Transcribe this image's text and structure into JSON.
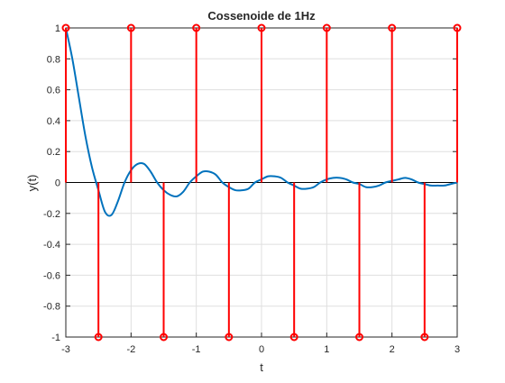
{
  "chart_data": {
    "type": "line",
    "title": "Cossenoide de 1Hz",
    "xlabel": "t",
    "ylabel": "y(t)",
    "xlim": [
      -3,
      3
    ],
    "ylim": [
      -1,
      1
    ],
    "grid": true,
    "x_ticks": [
      -3,
      -2,
      -1,
      0,
      1,
      2,
      3
    ],
    "y_ticks": [
      -1,
      -0.8,
      -0.6,
      -0.4,
      -0.2,
      0,
      0.2,
      0.4,
      0.6,
      0.8,
      1
    ],
    "x_tick_labels": [
      "-3",
      "-2",
      "-1",
      "0",
      "1",
      "2",
      "3"
    ],
    "y_tick_labels": [
      "-1",
      "-0.8",
      "-0.6",
      "-0.4",
      "-0.2",
      "0",
      "0.2",
      "0.4",
      "0.6",
      "0.8",
      "1"
    ],
    "series": [
      {
        "kind": "line",
        "color": "#0072BD",
        "x": [
          -3.0,
          -2.9,
          -2.8,
          -2.7,
          -2.6,
          -2.5,
          -2.4,
          -2.3,
          -2.2,
          -2.1,
          -2.0,
          -1.9,
          -1.8,
          -1.7,
          -1.6,
          -1.5,
          -1.4,
          -1.3,
          -1.2,
          -1.1,
          -1.0,
          -0.9,
          -0.8,
          -0.7,
          -0.6,
          -0.5,
          -0.4,
          -0.3,
          -0.2,
          -0.1,
          0.0,
          0.1,
          0.2,
          0.3,
          0.4,
          0.5,
          0.6,
          0.7,
          0.8,
          0.9,
          1.0,
          1.1,
          1.2,
          1.3,
          1.4,
          1.5,
          1.6,
          1.7,
          1.8,
          1.9,
          2.0,
          2.1,
          2.2,
          2.3,
          2.4,
          2.5,
          2.6,
          2.7,
          2.8,
          2.9,
          3.0
        ],
        "y": [
          1.0,
          0.8,
          0.55,
          0.3,
          0.1,
          -0.05,
          -0.19,
          -0.21,
          -0.12,
          0.0,
          0.08,
          0.12,
          0.12,
          0.07,
          0.0,
          -0.05,
          -0.08,
          -0.09,
          -0.06,
          0.0,
          0.04,
          0.07,
          0.07,
          0.05,
          0.0,
          -0.03,
          -0.05,
          -0.05,
          -0.04,
          0.0,
          0.02,
          0.04,
          0.04,
          0.03,
          0.0,
          -0.02,
          -0.04,
          -0.04,
          -0.03,
          0.0,
          0.02,
          0.03,
          0.03,
          0.02,
          0.0,
          -0.01,
          -0.03,
          -0.03,
          -0.02,
          0.0,
          0.01,
          0.02,
          0.03,
          0.02,
          0.0,
          -0.01,
          -0.02,
          -0.02,
          -0.02,
          -0.01,
          0.0
        ]
      },
      {
        "kind": "stem",
        "color": "#FF0000",
        "x": [
          -3,
          -2.5,
          -2,
          -1.5,
          -1,
          -0.5,
          0,
          0.5,
          1,
          1.5,
          2,
          2.5,
          3
        ],
        "y": [
          1,
          -1,
          1,
          -1,
          1,
          -1,
          1,
          -1,
          1,
          -1,
          1,
          -1,
          1
        ]
      }
    ]
  }
}
